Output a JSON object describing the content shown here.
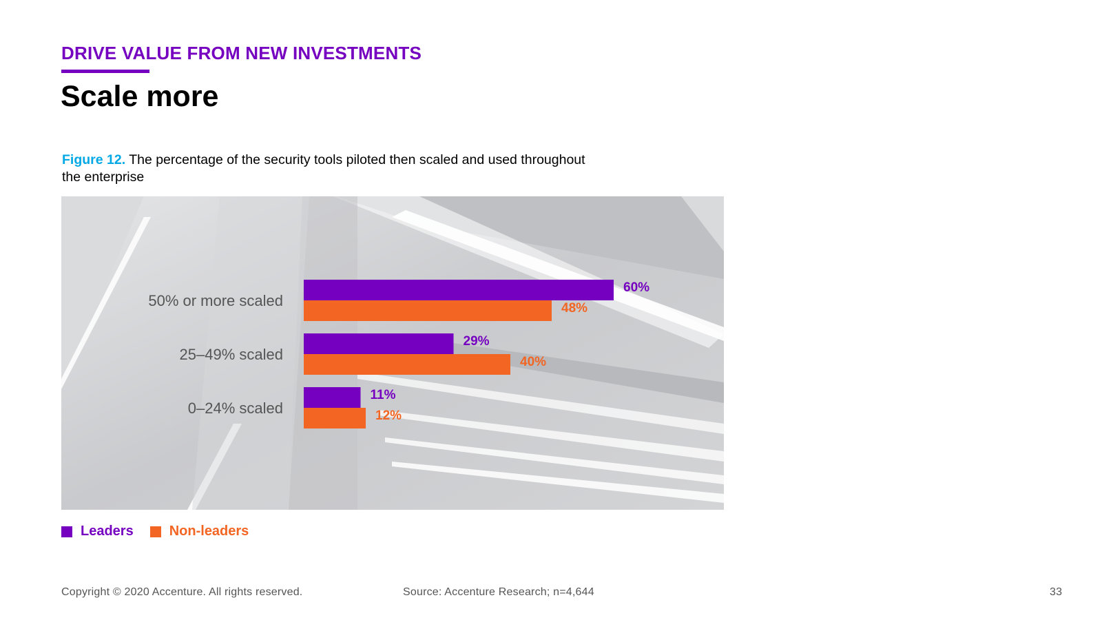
{
  "header": {
    "kicker": "DRIVE VALUE FROM NEW INVESTMENTS",
    "title": "Scale more"
  },
  "caption": {
    "figure_label": "Figure 12.",
    "text": " The percentage of the security tools piloted then scaled and used throughout the enterprise"
  },
  "colors": {
    "accent": "#7500c0",
    "leaders": "#7500c0",
    "non_leaders": "#f26522",
    "figure_label": "#00a9e6",
    "category_text": "#555555"
  },
  "chart_data": {
    "type": "bar",
    "orientation": "horizontal",
    "categories": [
      "50% or more scaled",
      "25–49% scaled",
      "0–24% scaled"
    ],
    "series": [
      {
        "name": "Leaders",
        "values": [
          60,
          29,
          11
        ],
        "labels": [
          "60%",
          "29%",
          "11%"
        ]
      },
      {
        "name": "Non-leaders",
        "values": [
          48,
          40,
          12
        ],
        "labels": [
          "48%",
          "40%",
          "12%"
        ]
      }
    ],
    "xlim": [
      0,
      100
    ],
    "grid": false,
    "legend_position": "bottom-left",
    "background": "architectural photo"
  },
  "legend": {
    "items": [
      {
        "label": "Leaders",
        "color": "#7500c0"
      },
      {
        "label": "Non-leaders",
        "color": "#f26522"
      }
    ]
  },
  "footer": {
    "copyright": "Copyright © 2020 Accenture. All rights reserved.",
    "source": "Source: Accenture Research; n=4,644",
    "page_number": "33"
  }
}
